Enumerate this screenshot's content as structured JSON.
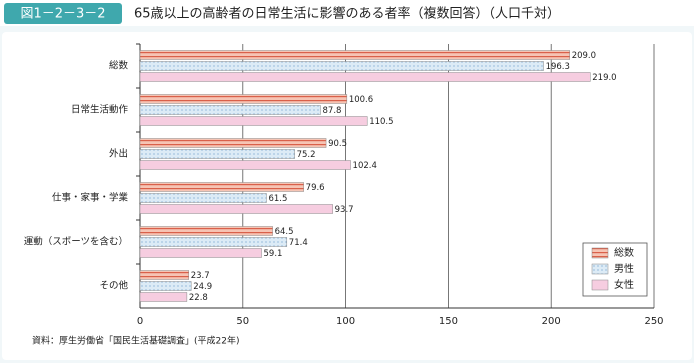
{
  "chart_data": {
    "type": "hbar",
    "figure_label": "図1－2－3－2",
    "title": "65歳以上の高齢者の日常生活に影響のある者率（複数回答）（人口千対）",
    "categories": [
      "総数",
      "日常生活動作",
      "外出",
      "仕事・家事・学業",
      "運動（スポーツを含む）",
      "その他"
    ],
    "series": [
      {
        "name": "総数",
        "color": "#f6c4b4",
        "values": [
          209.0,
          100.6,
          90.5,
          79.6,
          64.5,
          23.7
        ],
        "value_labels": [
          "209.0",
          "100.6",
          "90.5",
          "79.6",
          "64.5",
          "23.7"
        ]
      },
      {
        "name": "男性",
        "color": "#dcebf6",
        "values": [
          196.3,
          87.8,
          75.2,
          61.5,
          71.4,
          24.9
        ],
        "value_labels": [
          "196.3",
          "87.8",
          "75.2",
          "61.5",
          "71.4",
          "24.9"
        ]
      },
      {
        "name": "女性",
        "color": "#f6cde0",
        "values": [
          219.0,
          110.5,
          102.4,
          93.7,
          59.1,
          22.8
        ],
        "value_labels": [
          "219.0",
          "110.5",
          "102.4",
          "93.7",
          "59.1",
          "22.8"
        ]
      }
    ],
    "xlim": [
      0,
      250
    ],
    "xticks": [
      0,
      50,
      100,
      150,
      200,
      250
    ],
    "grid": true,
    "legend": "lower right",
    "source": "資料：厚生労働省「国民生活基礎調査」(平成22年)"
  }
}
